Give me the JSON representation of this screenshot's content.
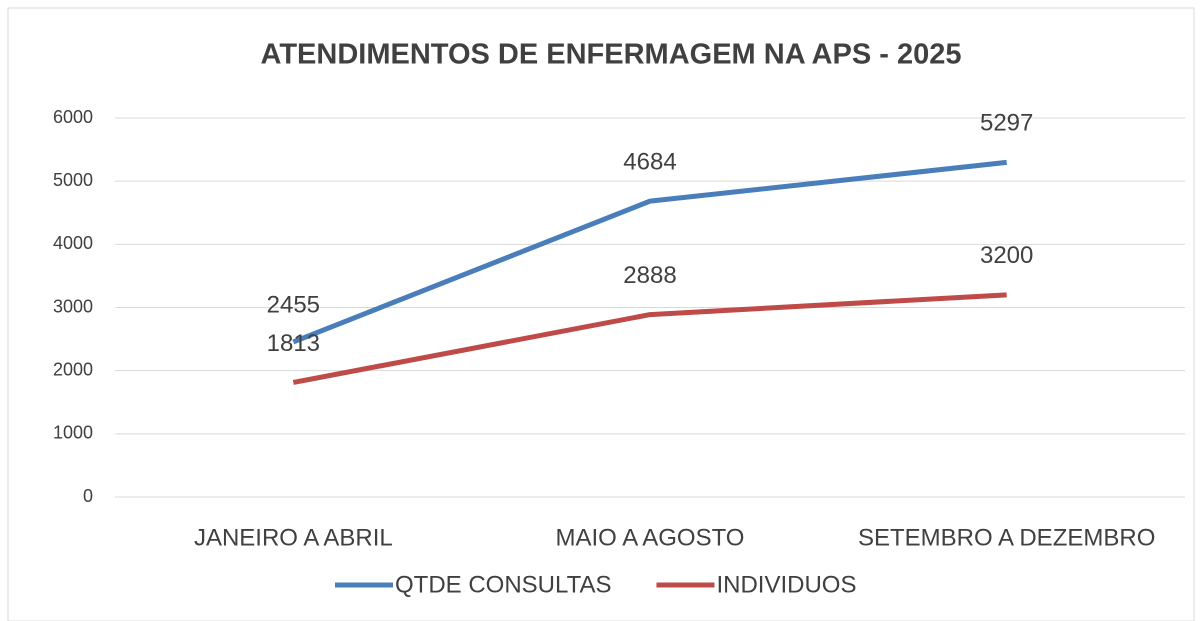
{
  "chart_data": {
    "type": "line",
    "title": "ATENDIMENTOS DE ENFERMAGEM NA APS - 2025",
    "categories": [
      "JANEIRO A ABRIL",
      "MAIO A AGOSTO",
      "SETEMBRO A DEZEMBRO"
    ],
    "series": [
      {
        "name": "QTDE CONSULTAS",
        "color": "#4a7ebb",
        "values": [
          2455,
          4684,
          5297
        ]
      },
      {
        "name": "INDIVIDUOS",
        "color": "#be4b48",
        "values": [
          1813,
          2888,
          3200
        ]
      }
    ],
    "ylim": [
      0,
      6000
    ],
    "yticks": [
      0,
      1000,
      2000,
      3000,
      4000,
      5000,
      6000
    ],
    "grid": true,
    "legend": "bottom"
  }
}
